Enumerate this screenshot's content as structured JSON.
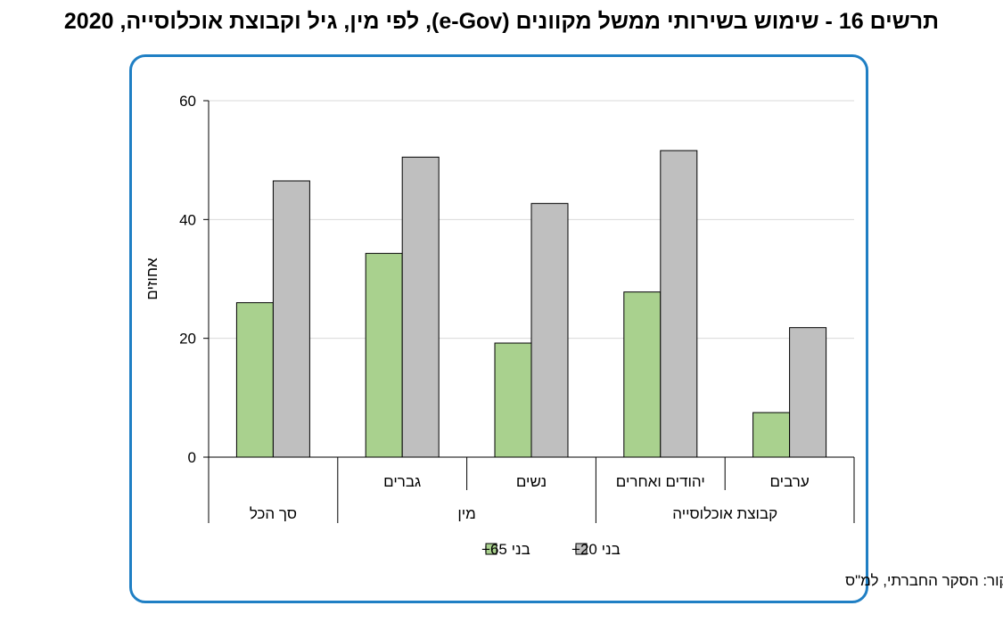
{
  "title": "תרשים 16 - שימוש בשירותי ממשל מקוונים (e-Gov), לפי מין, גיל וקבוצת אוכלוסייה, 2020",
  "source": "מקור: הסקר החברתי, למ\"ס",
  "chart_data": {
    "type": "bar",
    "ylabel": "אחוזים",
    "ylim": [
      0,
      60
    ],
    "yticks": [
      0,
      20,
      40,
      60
    ],
    "grid": true,
    "legend_position": "bottom",
    "categories": [
      "סך הכל",
      "גברים",
      "נשים",
      "יהודים ואחרים",
      "ערבים"
    ],
    "groups": [
      {
        "label": "סך הכל",
        "categories": [
          "סך הכל"
        ]
      },
      {
        "label": "מין",
        "categories": [
          "גברים",
          "נשים"
        ]
      },
      {
        "label": "קבוצת אוכלוסייה",
        "categories": [
          "יהודים ואחרים",
          "ערבים"
        ]
      }
    ],
    "series": [
      {
        "name": "בני 65+",
        "color": "#a9d18e",
        "values": [
          26.0,
          34.3,
          19.2,
          27.8,
          7.5
        ]
      },
      {
        "name": "בני 20+",
        "color": "#bfbfbf",
        "values": [
          46.5,
          50.5,
          42.7,
          51.6,
          21.8
        ]
      }
    ]
  }
}
